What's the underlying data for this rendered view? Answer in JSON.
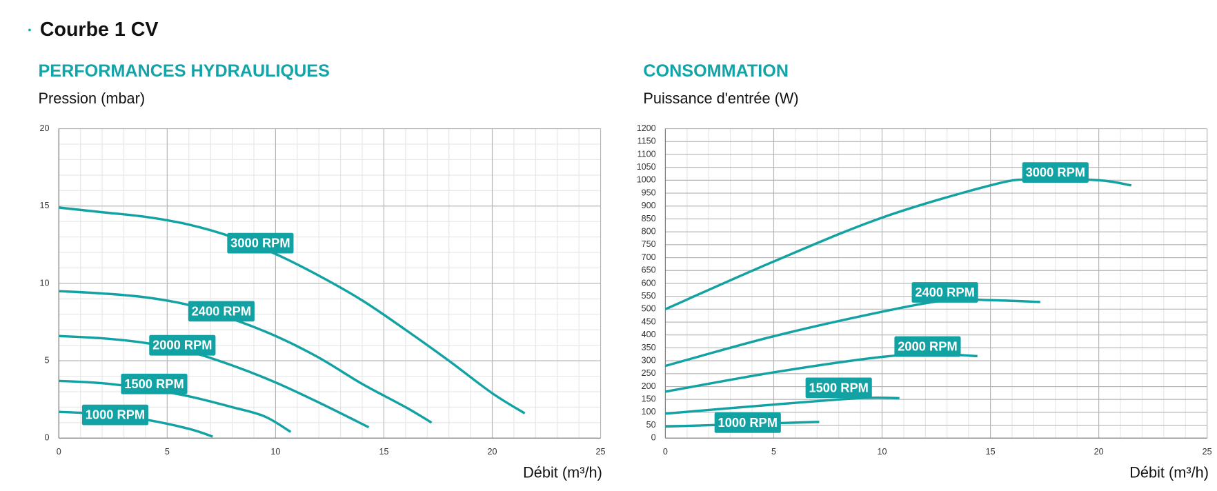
{
  "heading": "Courbe 1 CV",
  "chart_data": [
    {
      "type": "line",
      "title": "PERFORMANCES HYDRAULIQUES",
      "ylabel": "Pression (mbar)",
      "xlabel": "Débit (m³/h)",
      "xlim": [
        0,
        25
      ],
      "ylim": [
        0,
        20
      ],
      "xticks": [
        0,
        5,
        10,
        15,
        20,
        25
      ],
      "yticks": [
        0,
        5,
        10,
        15,
        20
      ],
      "grid": true,
      "series": [
        {
          "name": "3000 RPM",
          "color": "#12a2a4",
          "x": [
            0,
            2,
            4,
            6,
            8,
            10,
            12,
            14,
            16,
            18,
            20,
            21.5
          ],
          "values": [
            14.9,
            14.6,
            14.3,
            13.8,
            13,
            11.9,
            10.5,
            8.9,
            7,
            5,
            2.9,
            1.6
          ]
        },
        {
          "name": "2400 RPM",
          "color": "#12a2a4",
          "x": [
            0,
            2,
            4,
            6,
            8,
            10,
            12,
            14,
            16,
            17.2
          ],
          "values": [
            9.5,
            9.35,
            9.1,
            8.6,
            7.7,
            6.6,
            5.2,
            3.5,
            2,
            1
          ]
        },
        {
          "name": "2000 RPM",
          "color": "#12a2a4",
          "x": [
            0,
            2,
            4,
            6,
            8,
            10,
            12,
            14.3
          ],
          "values": [
            6.6,
            6.45,
            6.15,
            5.6,
            4.7,
            3.6,
            2.3,
            0.7
          ]
        },
        {
          "name": "1500 RPM",
          "color": "#12a2a4",
          "x": [
            0,
            2,
            4,
            6,
            8,
            9.5,
            10.7
          ],
          "values": [
            3.7,
            3.55,
            3.2,
            2.7,
            2,
            1.4,
            0.4
          ]
        },
        {
          "name": "1000 RPM",
          "color": "#12a2a4",
          "x": [
            0,
            2,
            4,
            6,
            7.1
          ],
          "values": [
            1.7,
            1.55,
            1.2,
            0.6,
            0.1
          ]
        }
      ]
    },
    {
      "type": "line",
      "title": "CONSOMMATION",
      "ylabel": "Puissance d'entrée (W)",
      "xlabel": "Débit (m³/h)",
      "xlim": [
        0,
        25
      ],
      "ylim": [
        0,
        1200
      ],
      "xticks": [
        0,
        5,
        10,
        15,
        20,
        25
      ],
      "yticks": [
        0,
        50,
        100,
        150,
        200,
        250,
        300,
        350,
        400,
        450,
        500,
        550,
        600,
        650,
        700,
        750,
        800,
        850,
        900,
        950,
        1000,
        1050,
        1100,
        1150,
        1200
      ],
      "grid": true,
      "series": [
        {
          "name": "3000 RPM",
          "color": "#12a2a4",
          "x": [
            0,
            5,
            10,
            15,
            17,
            20,
            21.5
          ],
          "values": [
            500,
            685,
            855,
            980,
            1005,
            1000,
            980
          ]
        },
        {
          "name": "2400 RPM",
          "color": "#12a2a4",
          "x": [
            0,
            5,
            10,
            13,
            15,
            17.3
          ],
          "values": [
            280,
            395,
            490,
            535,
            535,
            528
          ]
        },
        {
          "name": "2000 RPM",
          "color": "#12a2a4",
          "x": [
            0,
            5,
            10,
            12.5,
            14.4
          ],
          "values": [
            180,
            255,
            315,
            325,
            318
          ]
        },
        {
          "name": "1500 RPM",
          "color": "#12a2a4",
          "x": [
            0,
            5,
            9,
            10.8
          ],
          "values": [
            95,
            130,
            155,
            155
          ]
        },
        {
          "name": "1000 RPM",
          "color": "#12a2a4",
          "x": [
            0,
            4,
            7.1
          ],
          "values": [
            45,
            55,
            63
          ]
        }
      ]
    }
  ]
}
